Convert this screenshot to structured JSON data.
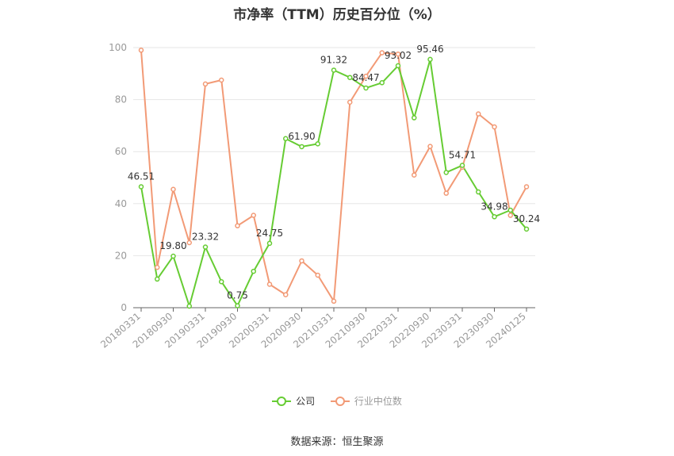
{
  "chart_data": {
    "type": "line",
    "title": "市净率（TTM）历史百分位（%）",
    "source": "数据来源：恒生聚源",
    "ylim": [
      0,
      100
    ],
    "yticks": [
      0,
      20,
      40,
      60,
      80,
      100
    ],
    "x": [
      "20180331",
      "20180630",
      "20180930",
      "20181231",
      "20190331",
      "20190630",
      "20190930",
      "20191231",
      "20200331",
      "20200630",
      "20200930",
      "20201231",
      "20210331",
      "20210630",
      "20210930",
      "20211231",
      "20220331",
      "20220630",
      "20220930",
      "20221231",
      "20230331",
      "20230630",
      "20230930",
      "20231231",
      "20240125"
    ],
    "xticks": [
      "20180331",
      "20180930",
      "20190331",
      "20190930",
      "20200331",
      "20200930",
      "20210331",
      "20210930",
      "20220331",
      "20220930",
      "20230331",
      "20230930",
      "20240125"
    ],
    "grid": true,
    "legend_position": "bottom",
    "series": [
      {
        "name": "公司",
        "color": "#66cc33",
        "values": [
          46.51,
          11,
          19.8,
          0.6,
          23.32,
          10,
          0.75,
          14,
          24.75,
          65,
          61.9,
          63,
          91.32,
          88.5,
          84.47,
          86.5,
          93.02,
          73,
          95.46,
          52,
          54.71,
          44.5,
          34.98,
          37.5,
          30.24
        ],
        "labels": {
          "0": "46.51",
          "2": "19.80",
          "4": "23.32",
          "6": "0.75",
          "8": "24.75",
          "10": "61.90",
          "12": "91.32",
          "14": "84.47",
          "16": "93.02",
          "18": "95.46",
          "20": "54.71",
          "22": "34.98",
          "24": "30.24"
        }
      },
      {
        "name": "行业中位数",
        "color": "#f29a76",
        "values": [
          99,
          15.5,
          45.5,
          25,
          86,
          87.5,
          31.5,
          35.5,
          9,
          5,
          18,
          12.5,
          2.5,
          79,
          89,
          98,
          97.5,
          51,
          62,
          44,
          54,
          74.5,
          69.5,
          35.5,
          46.5
        ]
      }
    ]
  }
}
